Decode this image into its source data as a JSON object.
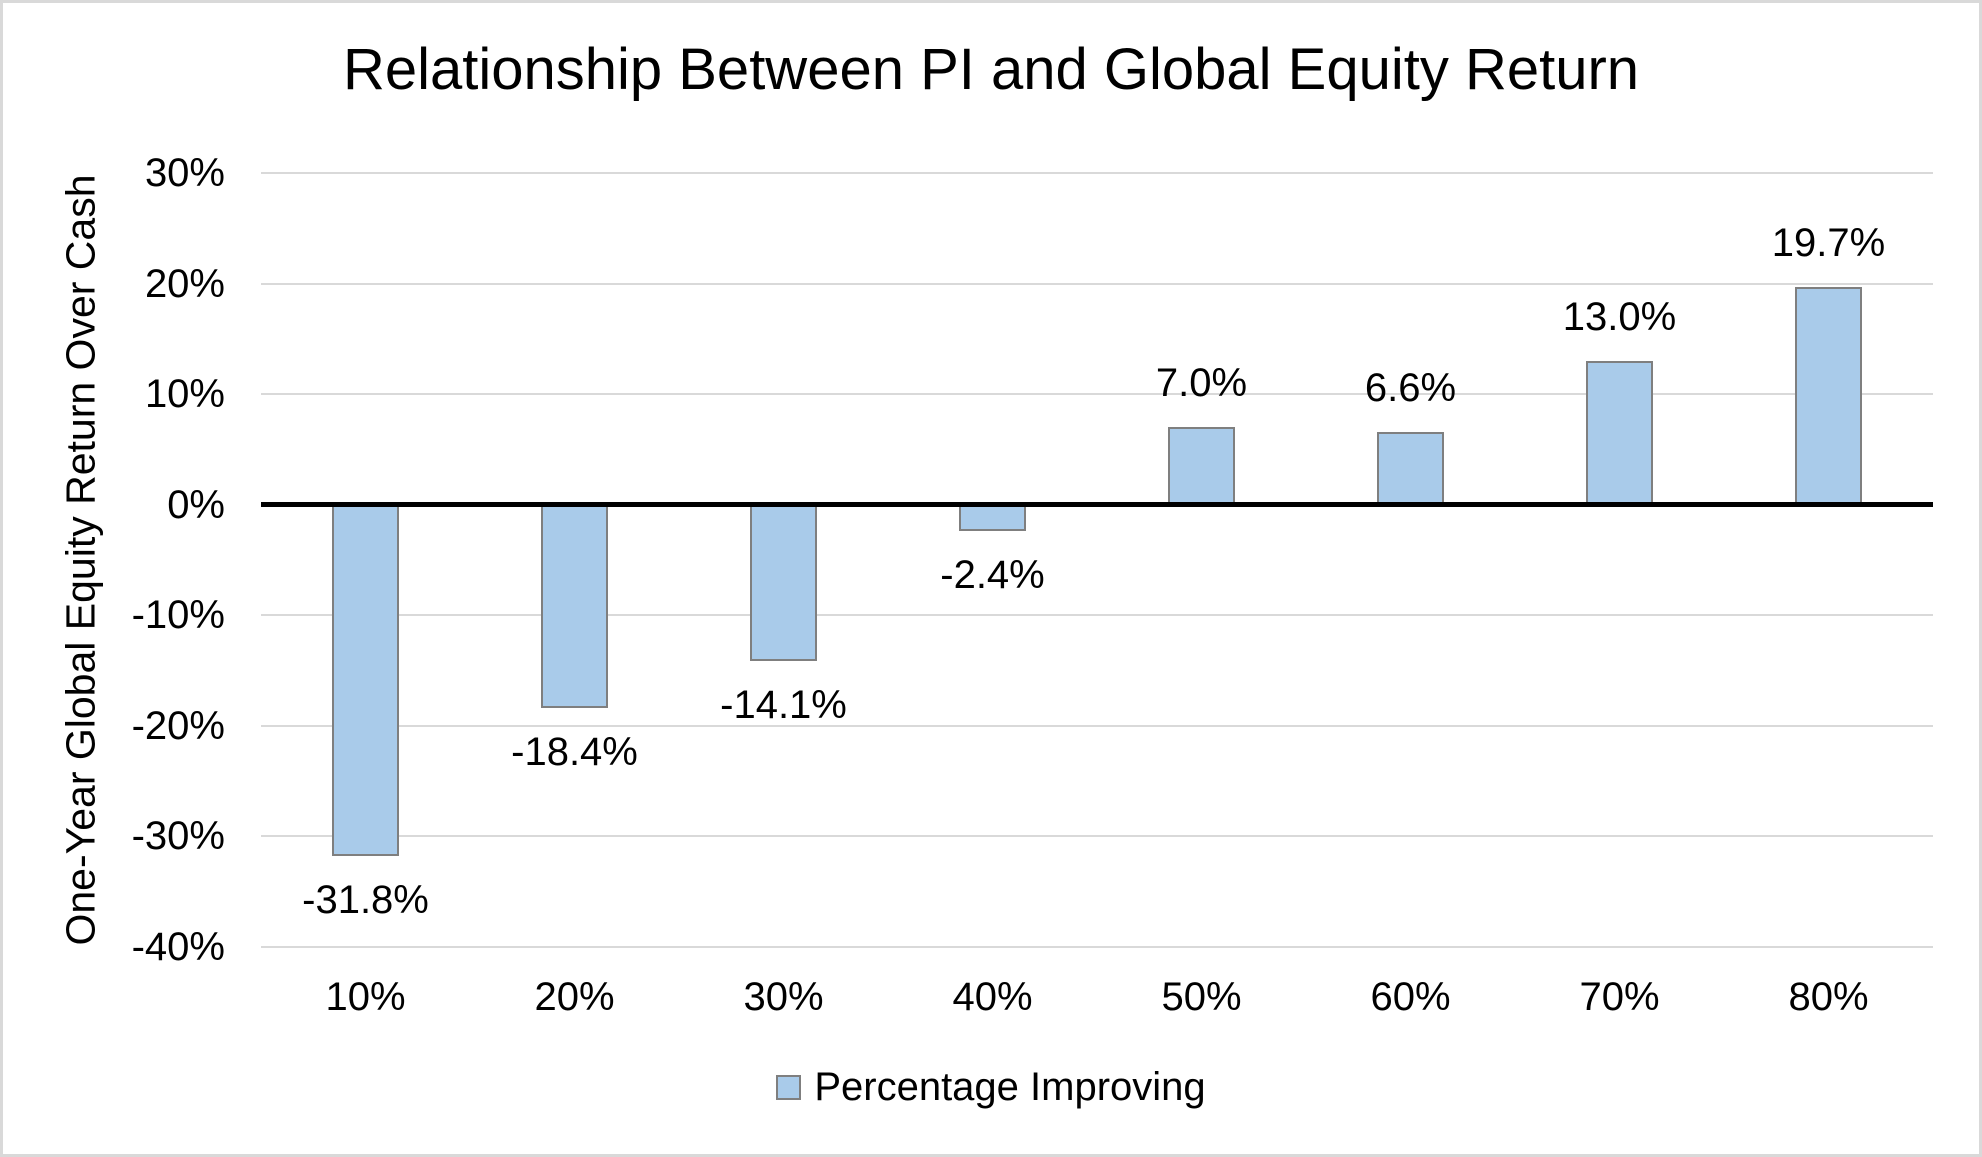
{
  "chart_data": {
    "type": "bar",
    "title": "Relationship Between PI and Global Equity Return",
    "xlabel": "",
    "ylabel": "One-Year Global Equity Return Over Cash",
    "categories": [
      "10%",
      "20%",
      "30%",
      "40%",
      "50%",
      "60%",
      "70%",
      "80%"
    ],
    "series": [
      {
        "name": "Percentage Improving",
        "values": [
          -31.8,
          -18.4,
          -14.1,
          -2.4,
          7.0,
          6.6,
          13.0,
          19.7
        ],
        "value_labels": [
          "-31.8%",
          "-18.4%",
          "-14.1%",
          "-2.4%",
          "7.0%",
          "6.6%",
          "13.0%",
          "19.7%"
        ]
      }
    ],
    "y_ticks": [
      {
        "label": "30%",
        "value": 30
      },
      {
        "label": "20%",
        "value": 20
      },
      {
        "label": "10%",
        "value": 10
      },
      {
        "label": "0%",
        "value": 0
      },
      {
        "label": "-10%",
        "value": -10
      },
      {
        "label": "-20%",
        "value": -20
      },
      {
        "label": "-30%",
        "value": -30
      },
      {
        "label": "-40%",
        "value": -40
      }
    ],
    "ylim": [
      -40,
      30
    ],
    "grid": "horizontal",
    "legend": {
      "label": "Percentage Improving",
      "position": "bottom",
      "marker": "square-swatch"
    },
    "colors": {
      "bar_fill": "#A9CBEA",
      "bar_border": "#7F7F7F",
      "gridline": "#D9D9D9",
      "zero_line": "#000000",
      "text": "#000000",
      "frame_border": "#D9D9D9",
      "background": "#FFFFFF"
    }
  }
}
